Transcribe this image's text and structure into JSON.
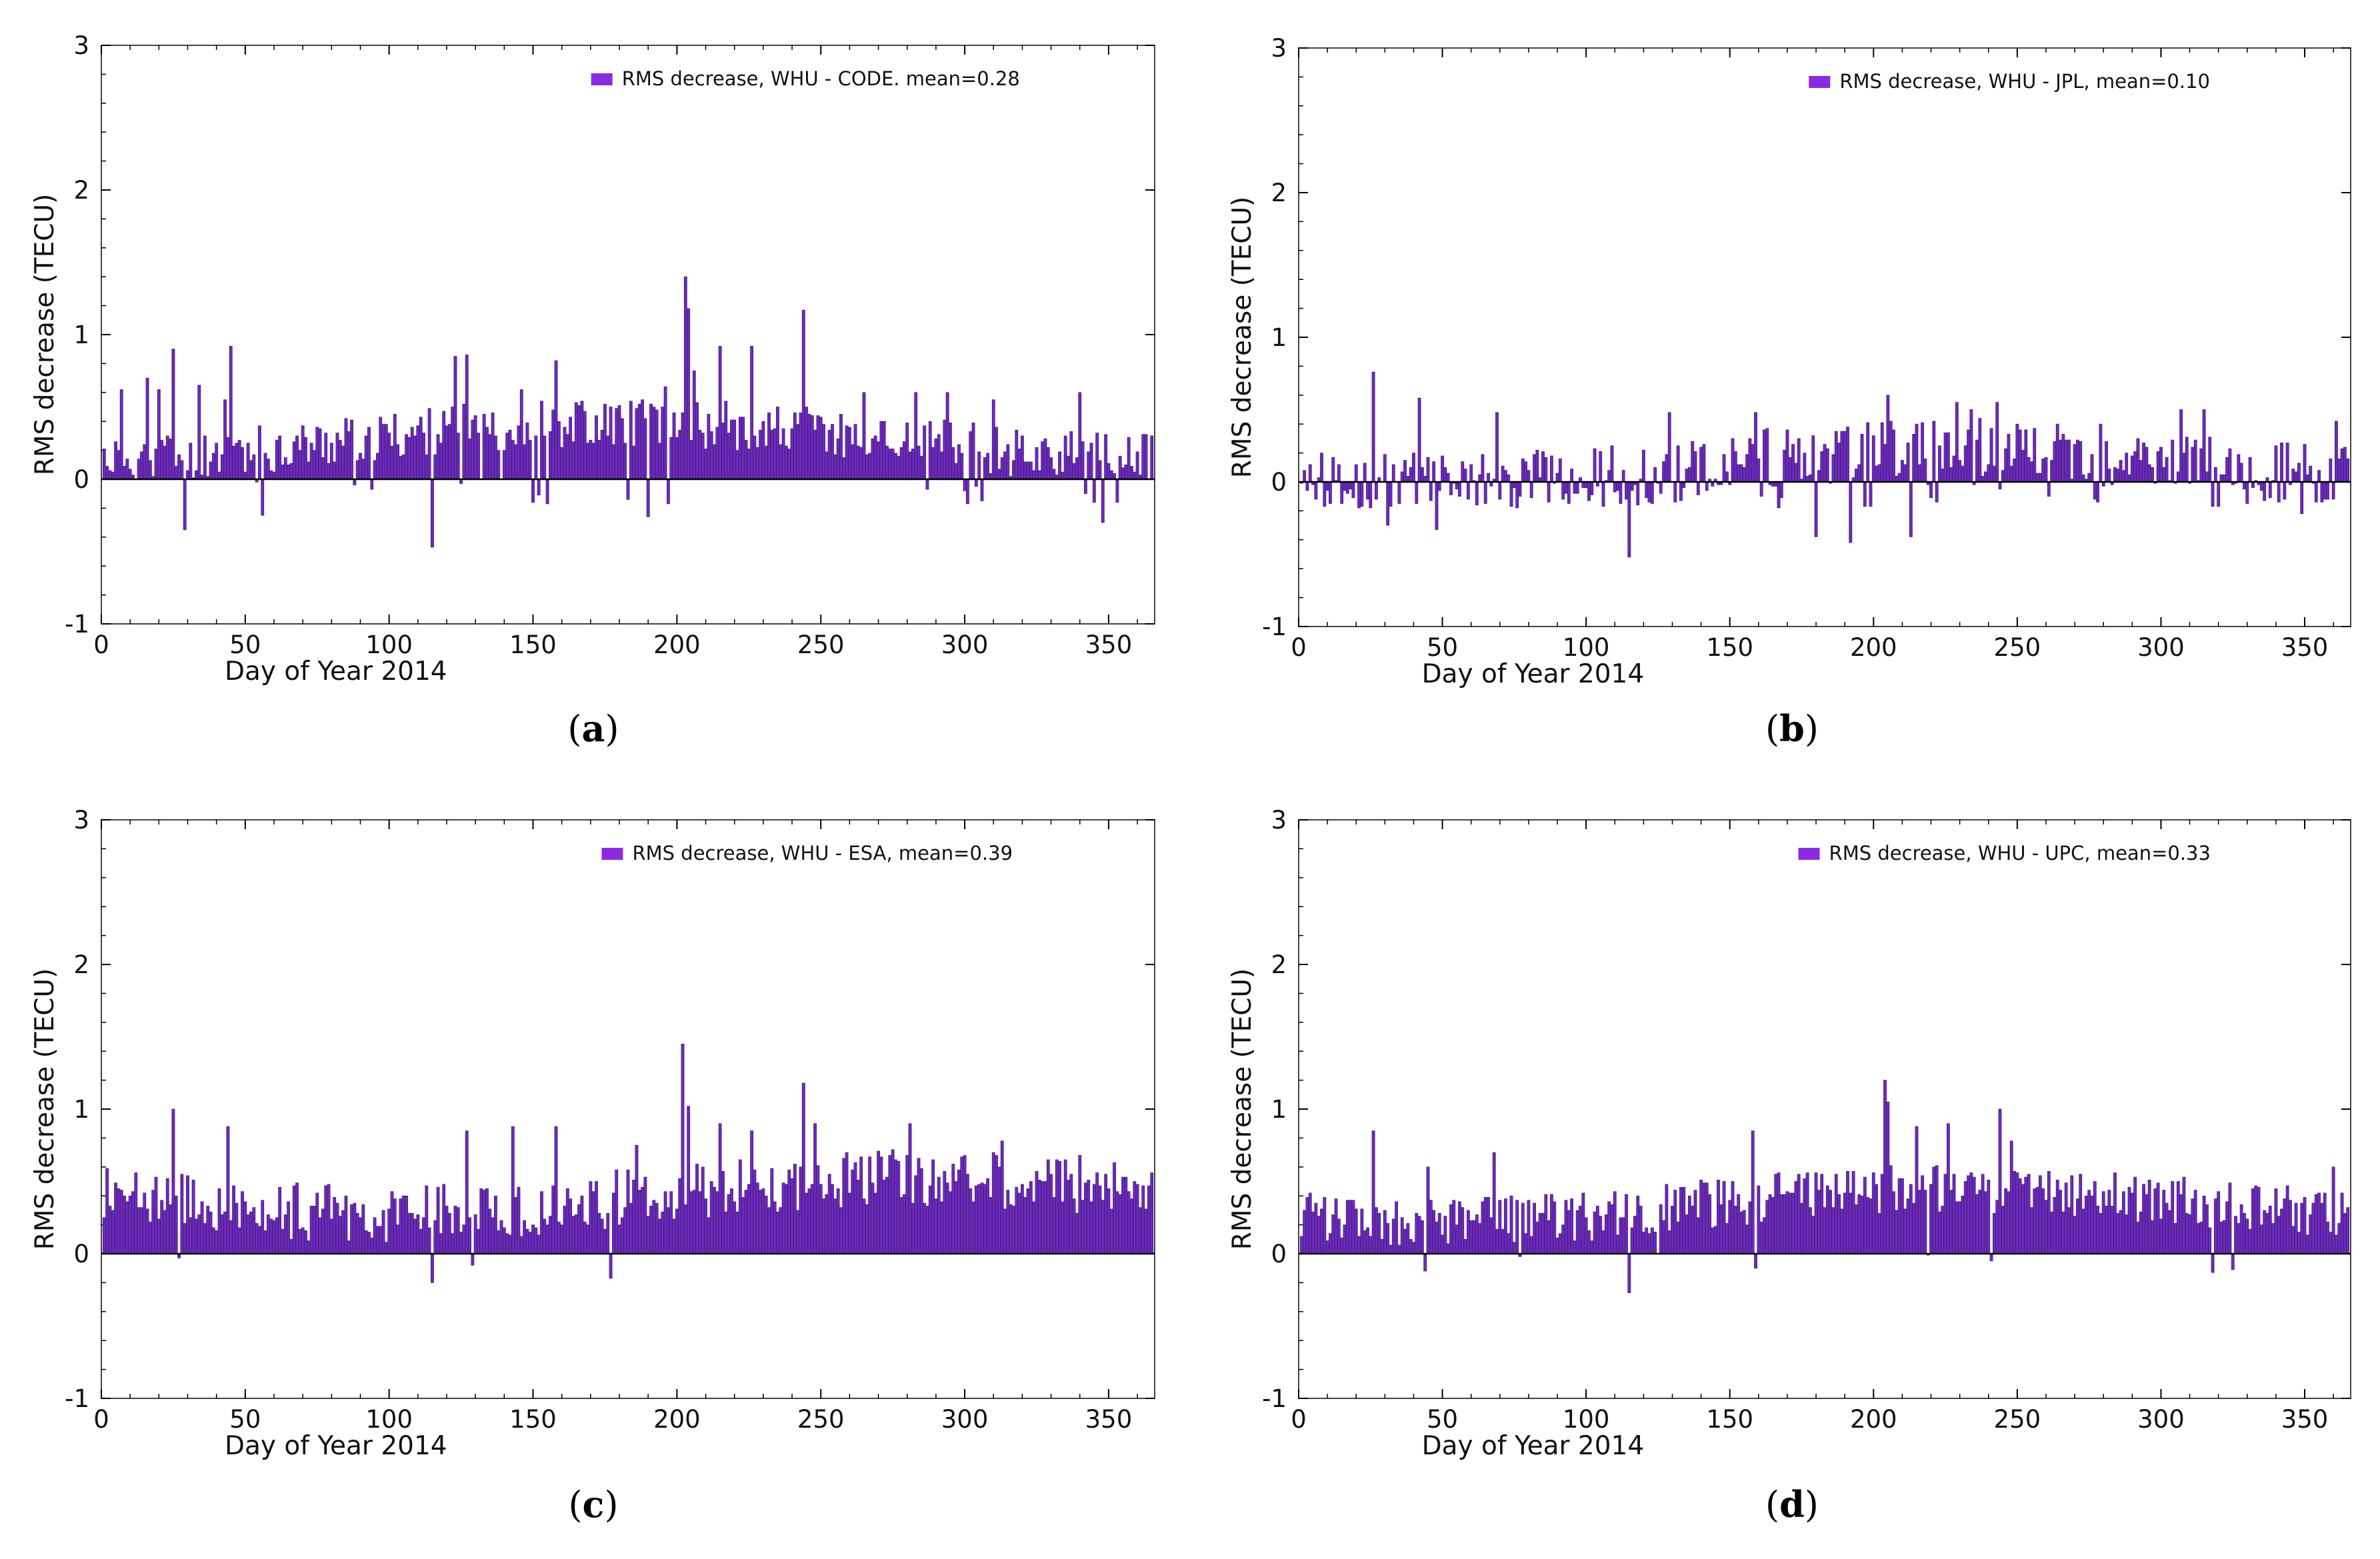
{
  "colors": {
    "bar_fill": "#6a2bb8",
    "bar_edge": "#3d1270",
    "legend": "#8a2be2",
    "axis": "#000000"
  },
  "chart_data": [
    {
      "type": "bar",
      "panel": "a",
      "legend": "RMS decrease, WHU - CODE. mean=0.28",
      "xlabel": "Day of Year 2014",
      "ylabel": "RMS decrease (TECU)",
      "xlim": [
        0,
        366
      ],
      "ylim": [
        -1,
        3
      ],
      "xticks": [
        0,
        50,
        100,
        150,
        200,
        250,
        300,
        350
      ],
      "yticks": [
        -1,
        0,
        1,
        2,
        3
      ],
      "spikes": [
        [
          7,
          0.62
        ],
        [
          16,
          0.7
        ],
        [
          20,
          0.62
        ],
        [
          25,
          0.9
        ],
        [
          29,
          -0.35
        ],
        [
          34,
          0.65
        ],
        [
          45,
          0.92
        ],
        [
          43,
          0.55
        ],
        [
          56,
          -0.25
        ],
        [
          115,
          -0.47
        ],
        [
          123,
          0.85
        ],
        [
          127,
          0.86
        ],
        [
          146,
          0.62
        ],
        [
          158,
          0.82
        ],
        [
          190,
          -0.26
        ],
        [
          196,
          0.64
        ],
        [
          203,
          1.4
        ],
        [
          204,
          1.18
        ],
        [
          206,
          0.75
        ],
        [
          215,
          0.92
        ],
        [
          226,
          0.92
        ],
        [
          244,
          1.17
        ],
        [
          265,
          0.6
        ],
        [
          283,
          0.6
        ],
        [
          294,
          0.6
        ],
        [
          310,
          0.55
        ],
        [
          340,
          0.6
        ],
        [
          348,
          -0.3
        ]
      ]
    },
    {
      "type": "bar",
      "panel": "b",
      "legend": "RMS decrease, WHU - JPL, mean=0.10",
      "xlabel": "Day of Year 2014",
      "ylabel": "RMS decrease (TECU)",
      "xlim": [
        0,
        366
      ],
      "ylim": [
        -1,
        3
      ],
      "xticks": [
        0,
        50,
        100,
        150,
        200,
        250,
        300,
        350
      ],
      "yticks": [
        -1,
        0,
        1,
        2,
        3
      ],
      "spikes": [
        [
          26,
          0.76
        ],
        [
          31,
          -0.3
        ],
        [
          42,
          0.58
        ],
        [
          48,
          -0.33
        ],
        [
          69,
          0.48
        ],
        [
          115,
          -0.52
        ],
        [
          129,
          0.48
        ],
        [
          159,
          0.48
        ],
        [
          174,
          0.3
        ],
        [
          180,
          -0.38
        ],
        [
          192,
          -0.42
        ],
        [
          205,
          0.6
        ],
        [
          213,
          -0.38
        ],
        [
          229,
          0.55
        ],
        [
          234,
          0.5
        ],
        [
          243,
          0.55
        ],
        [
          307,
          0.5
        ],
        [
          315,
          0.5
        ],
        [
          349,
          -0.22
        ],
        [
          361,
          0.42
        ]
      ]
    },
    {
      "type": "bar",
      "panel": "c",
      "legend": "RMS decrease, WHU - ESA, mean=0.39",
      "xlabel": "Day of Year 2014",
      "ylabel": "RMS decrease (TECU)",
      "xlim": [
        0,
        366
      ],
      "ylim": [
        -1,
        3
      ],
      "xticks": [
        0,
        50,
        100,
        150,
        200,
        250,
        300,
        350
      ],
      "yticks": [
        -1,
        0,
        1,
        2,
        3
      ],
      "spikes": [
        [
          25,
          1.0
        ],
        [
          44,
          0.88
        ],
        [
          115,
          -0.2
        ],
        [
          127,
          0.85
        ],
        [
          129,
          -0.08
        ],
        [
          143,
          0.88
        ],
        [
          158,
          0.88
        ],
        [
          186,
          0.75
        ],
        [
          202,
          1.45
        ],
        [
          204,
          1.02
        ],
        [
          215,
          0.9
        ],
        [
          226,
          0.85
        ],
        [
          244,
          1.18
        ],
        [
          248,
          0.9
        ],
        [
          281,
          0.9
        ],
        [
          313,
          0.78
        ],
        [
          340,
          0.68
        ]
      ]
    },
    {
      "type": "bar",
      "panel": "d",
      "legend": "RMS decrease, WHU - UPC, mean=0.33",
      "xlabel": "Day of Year 2014",
      "ylabel": "RMS decrease (TECU)",
      "xlim": [
        0,
        366
      ],
      "ylim": [
        -1,
        3
      ],
      "xticks": [
        0,
        50,
        100,
        150,
        200,
        250,
        300,
        350
      ],
      "yticks": [
        -1,
        0,
        1,
        2,
        3
      ],
      "spikes": [
        [
          26,
          0.85
        ],
        [
          44,
          -0.12
        ],
        [
          45,
          0.6
        ],
        [
          68,
          0.7
        ],
        [
          115,
          -0.27
        ],
        [
          158,
          0.85
        ],
        [
          159,
          -0.1
        ],
        [
          204,
          1.2
        ],
        [
          205,
          1.05
        ],
        [
          215,
          0.88
        ],
        [
          226,
          0.9
        ],
        [
          244,
          1.0
        ],
        [
          248,
          0.78
        ],
        [
          360,
          0.6
        ]
      ]
    }
  ]
}
